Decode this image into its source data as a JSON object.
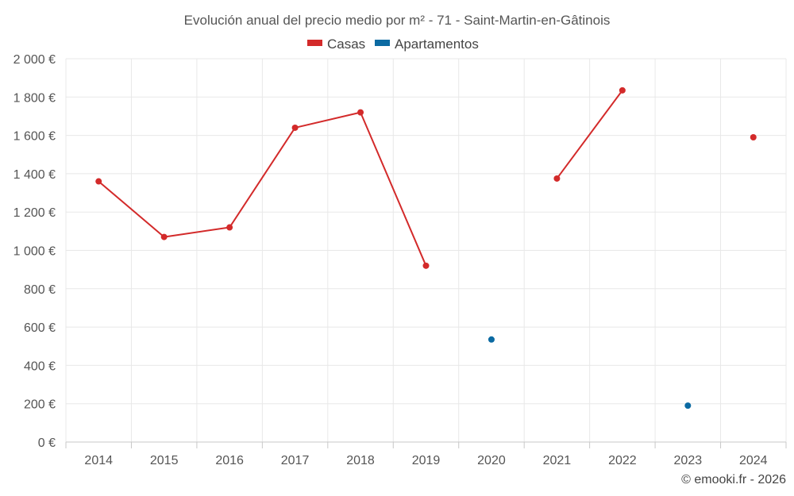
{
  "chart_data": {
    "type": "line",
    "title": "Evolución anual del precio medio por m² - 71 - Saint-Martin-en-Gâtinois",
    "categories": [
      "2014",
      "2015",
      "2016",
      "2017",
      "2018",
      "2019",
      "2020",
      "2021",
      "2022",
      "2023",
      "2024"
    ],
    "series": [
      {
        "name": "Casas",
        "color": "#d32a2a",
        "values": [
          1360,
          1070,
          1120,
          1640,
          1720,
          920,
          null,
          1375,
          1835,
          null,
          1590
        ]
      },
      {
        "name": "Apartamentos",
        "color": "#0b6aa2",
        "values": [
          null,
          null,
          null,
          null,
          null,
          null,
          535,
          null,
          null,
          190,
          null
        ]
      }
    ],
    "ylim": [
      0,
      2000
    ],
    "yticks": [
      0,
      200,
      400,
      600,
      800,
      1000,
      1200,
      1400,
      1600,
      1800,
      2000
    ],
    "ytick_labels": [
      "0 €",
      "200 €",
      "400 €",
      "600 €",
      "800 €",
      "1 000 €",
      "1 200 €",
      "1 400 €",
      "1 600 €",
      "1 800 €",
      "2 000 €"
    ],
    "xlabel": "",
    "ylabel": "",
    "grid": true,
    "legend_position": "top-center"
  },
  "credit": "© emooki.fr - 2026"
}
